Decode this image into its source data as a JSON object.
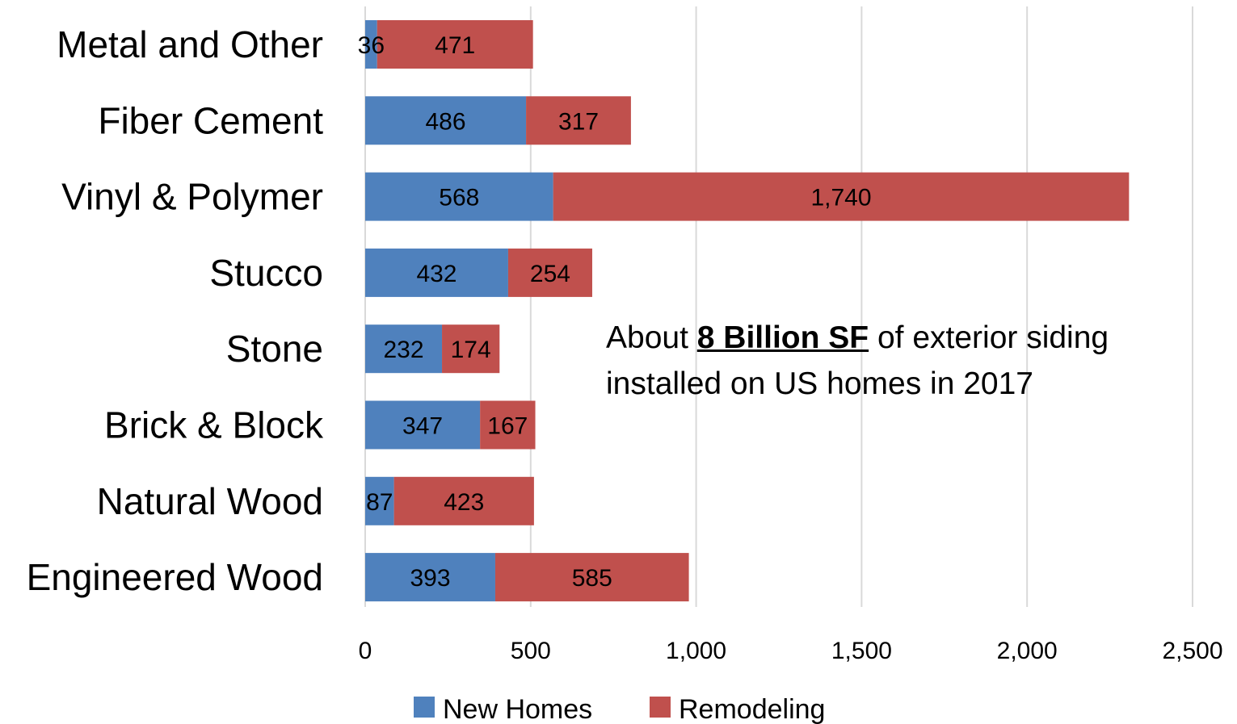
{
  "chart_data": {
    "type": "bar",
    "orientation": "horizontal",
    "stacked": true,
    "categories": [
      "Metal and Other",
      "Fiber Cement",
      "Vinyl & Polymer",
      "Stucco",
      "Stone",
      "Brick & Block",
      "Natural Wood",
      "Engineered Wood"
    ],
    "series": [
      {
        "name": "New Homes",
        "color": "#4F81BD",
        "values": [
          36,
          486,
          568,
          432,
          232,
          347,
          87,
          393
        ],
        "labels": [
          "36",
          "486",
          "568",
          "432",
          "232",
          "347",
          "87",
          "393"
        ]
      },
      {
        "name": "Remodeling",
        "color": "#C0504D",
        "values": [
          471,
          317,
          1740,
          254,
          174,
          167,
          423,
          585
        ],
        "labels": [
          "471",
          "317",
          "1,740",
          "254",
          "174",
          "167",
          "423",
          "585"
        ]
      }
    ],
    "xlim": [
      0,
      2500
    ],
    "xticks": [
      0,
      500,
      1000,
      1500,
      2000,
      2500
    ],
    "xtick_labels": [
      "0",
      "500",
      "1,000",
      "1,500",
      "2,000",
      "2,500"
    ],
    "grid": "vertical",
    "legend_position": "bottom",
    "title": "",
    "xlabel": "",
    "ylabel": ""
  },
  "annotation": {
    "prefix": "About ",
    "emphasis": "8 Billion SF",
    "suffix": " of exterior siding installed on US homes in 2017"
  }
}
